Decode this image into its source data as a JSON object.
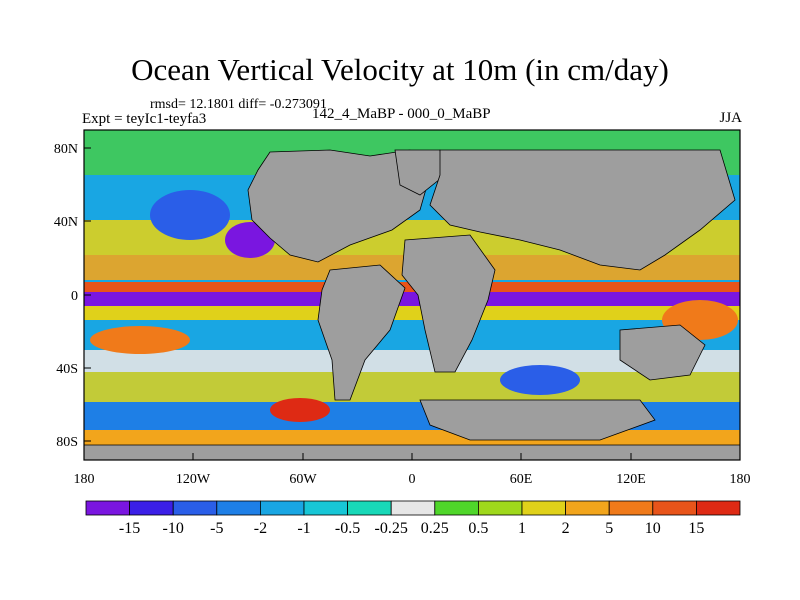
{
  "title": "Ocean Vertical Velocity at 10m (in cm/day)",
  "stats": "rmsd= 12.1801 diff= -0.273091",
  "experiment": "Expt = teyIc1-teyfa3",
  "difference": "142_4_MaBP - 000_0_MaBP",
  "season": "JJA",
  "lat_ticks": [
    "80N",
    "40N",
    "0",
    "40S",
    "80S"
  ],
  "lon_ticks": [
    "180",
    "120W",
    "60W",
    "0",
    "60E",
    "120E",
    "180"
  ],
  "colorbar": {
    "labels": [
      "-15",
      "-10",
      "-5",
      "-2",
      "-1",
      "-0.5",
      "-0.25",
      "0.25",
      "0.5",
      "1",
      "2",
      "5",
      "10",
      "15"
    ],
    "colors": [
      "#7a16e0",
      "#3b1fe6",
      "#2a5ee8",
      "#1e7fe6",
      "#19a6e3",
      "#17c6d6",
      "#18d8b8",
      "#e6e6e6",
      "#4fd62a",
      "#9fd81c",
      "#e0d11a",
      "#f2a51c",
      "#f07a1a",
      "#e8541a",
      "#de2a14"
    ]
  },
  "land_color": "#9e9e9e"
}
